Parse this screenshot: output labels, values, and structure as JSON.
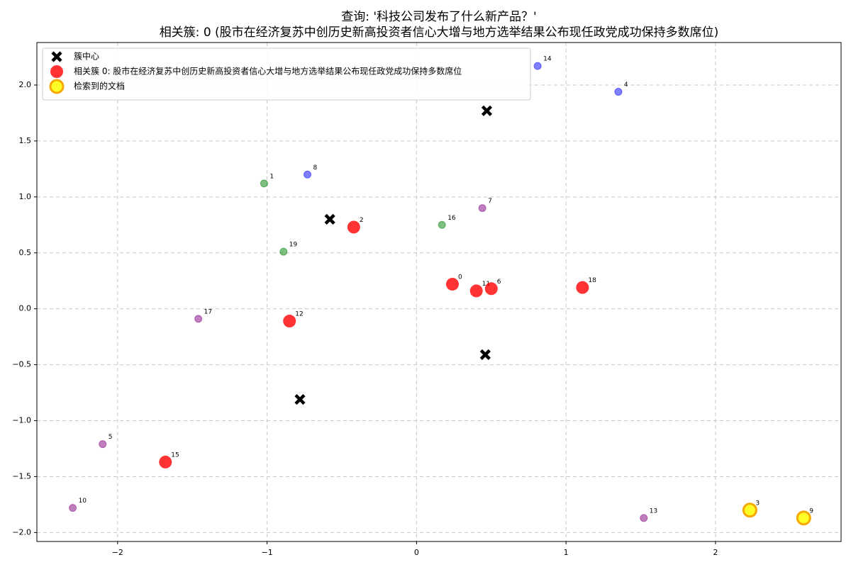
{
  "chart_data": {
    "type": "scatter",
    "title": "查询: '科技公司发布了什么新产品？'",
    "subtitle": "相关簇: 0 (股市在经济复苏中创历史新高投资者信心大增与地方选举结果公布现任政党成功保持多数席位)",
    "xlim": [
      -2.54,
      2.84
    ],
    "ylim": [
      -2.08,
      2.38
    ],
    "xticks": [
      {
        "value": -2,
        "label": "−2"
      },
      {
        "value": -1,
        "label": "−1"
      },
      0,
      1,
      2
    ],
    "yticks": [
      {
        "value": -2.0,
        "label": "−2.0"
      },
      {
        "value": -1.5,
        "label": "−1.5"
      },
      {
        "value": -1.0,
        "label": "−1.0"
      },
      {
        "value": -0.5,
        "label": "−0.5"
      },
      {
        "value": 0.0,
        "label": "0.0"
      },
      0.5,
      {
        "value": 1.0,
        "label": "1.0"
      },
      1.5,
      {
        "value": 2.0,
        "label": "2.0"
      }
    ],
    "grid": true,
    "legend": "upper left",
    "series": [
      {
        "name": "簇中心",
        "color": "#000000",
        "marker": "x",
        "x": [
          0.47,
          -0.58,
          0.46,
          -0.78
        ],
        "y": [
          1.77,
          0.8,
          -0.41,
          -0.81
        ]
      },
      {
        "name": "相关簇 0: 股市在经济复苏中创历史新高投资者信心大增与地方选举结果公布现任政党成功保持多数席位",
        "color": "#ff0000",
        "marker": "big",
        "x": [
          -0.42,
          0.24,
          0.4,
          0.5,
          1.11,
          -0.85,
          -1.68
        ],
        "y": [
          0.73,
          0.22,
          0.16,
          0.18,
          0.19,
          -0.11,
          -1.37
        ],
        "labels": [
          "2",
          "0",
          "11",
          "6",
          "18",
          "12",
          "15"
        ]
      },
      {
        "name": "检索到的文档",
        "color": "#ffff00",
        "edgecolor": "#f5a800",
        "marker": "ring",
        "x": [
          2.23,
          2.59
        ],
        "y": [
          -1.8,
          -1.87
        ],
        "labels": [
          "3",
          "9"
        ]
      },
      {
        "color": "#0000ff",
        "marker": "small",
        "x": [
          0.81,
          1.35,
          -0.73
        ],
        "y": [
          2.17,
          1.94,
          1.2
        ],
        "labels": [
          "14",
          "4",
          "8"
        ]
      },
      {
        "color": "#008000",
        "marker": "small",
        "x": [
          -1.02,
          0.17,
          -0.89
        ],
        "y": [
          1.12,
          0.75,
          0.51
        ],
        "labels": [
          "1",
          "16",
          "19"
        ]
      },
      {
        "color": "#800080",
        "marker": "small",
        "x": [
          0.44,
          -1.46,
          -2.1,
          -2.3,
          1.52
        ],
        "y": [
          0.9,
          -0.09,
          -1.21,
          -1.78,
          -1.87
        ],
        "labels": [
          "7",
          "17",
          "5",
          "10",
          "13"
        ]
      }
    ]
  }
}
